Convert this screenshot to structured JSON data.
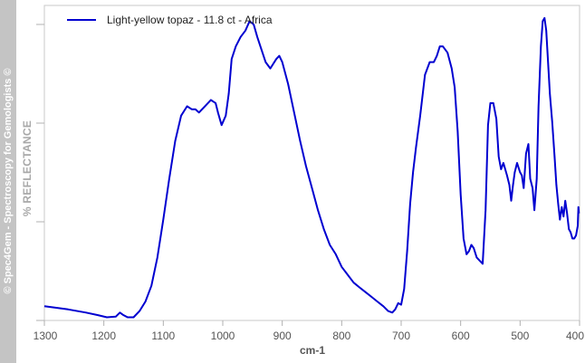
{
  "sidebar": {
    "watermark": "© Spec4Gem - Spectroscopy for Gemologists ©"
  },
  "chart_data": {
    "type": "line",
    "title": "",
    "xlabel": "cm-1",
    "ylabel": "% REFLECTANCE",
    "xlim": [
      1300,
      400
    ],
    "ylim": [
      0,
      1
    ],
    "x_reversed": true,
    "xticks": [
      1300,
      1200,
      1100,
      1000,
      900,
      800,
      700,
      600,
      500,
      400
    ],
    "xtick_labels": [
      "1300",
      "1200",
      "1100",
      "1000",
      "900",
      "800",
      "700",
      "600",
      "500",
      "400"
    ],
    "grid": false,
    "legend_position": "top-left",
    "series": [
      {
        "name": "Light-yellow topaz - 11.8 ct - Africa",
        "color": "#0000d0",
        "x": [
          1300,
          1260,
          1230,
          1210,
          1195,
          1180,
          1173,
          1168,
          1160,
          1150,
          1140,
          1130,
          1120,
          1110,
          1100,
          1090,
          1080,
          1070,
          1060,
          1052,
          1046,
          1040,
          1030,
          1020,
          1012,
          1008,
          1002,
          995,
          990,
          985,
          978,
          970,
          962,
          955,
          948,
          942,
          935,
          928,
          920,
          910,
          905,
          900,
          890,
          880,
          870,
          860,
          850,
          840,
          830,
          820,
          810,
          800,
          790,
          780,
          770,
          760,
          750,
          740,
          730,
          722,
          715,
          710,
          705,
          700,
          695,
          690,
          685,
          680,
          675,
          668,
          660,
          652,
          645,
          640,
          635,
          630,
          622,
          615,
          610,
          605,
          600,
          595,
          590,
          586,
          582,
          578,
          573,
          568,
          563,
          558,
          554,
          550,
          545,
          540,
          536,
          532,
          528,
          522,
          518,
          515,
          512,
          509,
          505,
          500,
          497,
          494,
          490,
          486,
          483,
          479,
          476,
          472,
          469,
          465,
          462,
          459,
          456,
          453,
          450,
          446,
          442,
          439,
          436,
          433,
          430,
          427,
          424,
          421,
          418,
          415,
          412,
          409,
          406,
          403,
          402,
          401
        ],
        "y": [
          0.045,
          0.035,
          0.025,
          0.017,
          0.01,
          0.012,
          0.025,
          0.018,
          0.01,
          0.01,
          0.03,
          0.06,
          0.11,
          0.2,
          0.32,
          0.45,
          0.57,
          0.65,
          0.68,
          0.67,
          0.67,
          0.66,
          0.68,
          0.7,
          0.69,
          0.66,
          0.62,
          0.65,
          0.72,
          0.83,
          0.87,
          0.9,
          0.92,
          0.95,
          0.94,
          0.9,
          0.86,
          0.82,
          0.8,
          0.83,
          0.84,
          0.82,
          0.75,
          0.66,
          0.57,
          0.49,
          0.42,
          0.35,
          0.29,
          0.24,
          0.21,
          0.17,
          0.145,
          0.12,
          0.105,
          0.09,
          0.075,
          0.06,
          0.045,
          0.03,
          0.025,
          0.035,
          0.055,
          0.05,
          0.1,
          0.22,
          0.37,
          0.47,
          0.55,
          0.65,
          0.78,
          0.82,
          0.82,
          0.84,
          0.87,
          0.87,
          0.85,
          0.8,
          0.74,
          0.6,
          0.4,
          0.26,
          0.21,
          0.22,
          0.24,
          0.23,
          0.2,
          0.19,
          0.18,
          0.35,
          0.62,
          0.69,
          0.69,
          0.64,
          0.52,
          0.48,
          0.5,
          0.46,
          0.43,
          0.38,
          0.43,
          0.47,
          0.5,
          0.47,
          0.46,
          0.42,
          0.53,
          0.56,
          0.45,
          0.42,
          0.35,
          0.45,
          0.68,
          0.87,
          0.95,
          0.96,
          0.92,
          0.82,
          0.72,
          0.63,
          0.52,
          0.43,
          0.37,
          0.32,
          0.36,
          0.33,
          0.38,
          0.34,
          0.29,
          0.28,
          0.26,
          0.26,
          0.27,
          0.3,
          0.36,
          0.34
        ]
      }
    ]
  }
}
